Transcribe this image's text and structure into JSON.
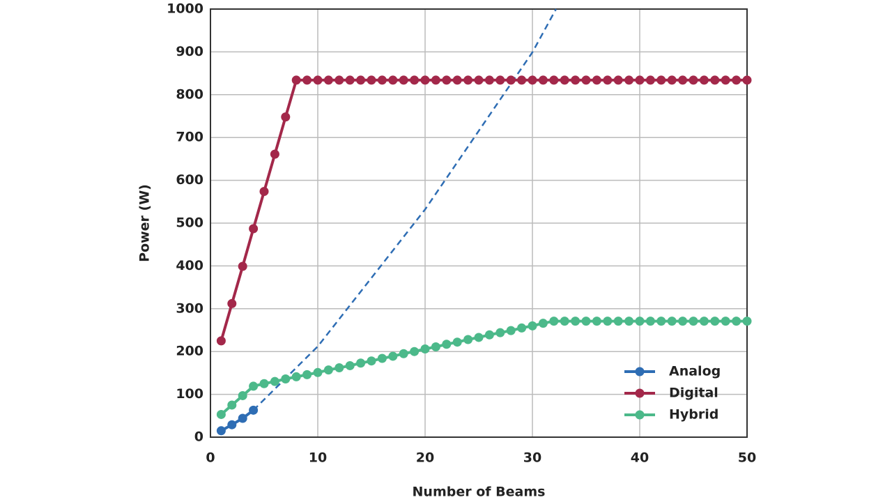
{
  "chart_data": {
    "type": "line",
    "xlabel": "Number of Beams",
    "ylabel": "Power (W)",
    "x": [
      1,
      2,
      3,
      4,
      5,
      6,
      7,
      8,
      9,
      10,
      11,
      12,
      13,
      14,
      15,
      16,
      17,
      18,
      19,
      20,
      21,
      22,
      23,
      24,
      25,
      26,
      27,
      28,
      29,
      30,
      31,
      32,
      33,
      34,
      35,
      36,
      37,
      38,
      39,
      40,
      41,
      42,
      43,
      44,
      45,
      46,
      47,
      48,
      49,
      50
    ],
    "series": [
      {
        "name": "Analog",
        "color": "#2e6db4",
        "x": [
          1,
          2,
          3,
          4
        ],
        "values": [
          15,
          29,
          44,
          63
        ],
        "projection": {
          "x": [
            4,
            10,
            20,
            30,
            32.2
          ],
          "values": [
            63,
            212,
            532,
            899,
            1000
          ]
        }
      },
      {
        "name": "Digital",
        "color": "#a3284a",
        "values": [
          225,
          312,
          399,
          487,
          574,
          661,
          748,
          834,
          834,
          834,
          834,
          834,
          834,
          834,
          834,
          834,
          834,
          834,
          834,
          834,
          834,
          834,
          834,
          834,
          834,
          834,
          834,
          834,
          834,
          834,
          834,
          834,
          834,
          834,
          834,
          834,
          834,
          834,
          834,
          834,
          834,
          834,
          834,
          834,
          834,
          834,
          834,
          834,
          834,
          834
        ]
      },
      {
        "name": "Hybrid",
        "color": "#4cb98a",
        "values": [
          53,
          75,
          97,
          119,
          125,
          130,
          136,
          141,
          146,
          151,
          157,
          162,
          167,
          173,
          178,
          184,
          189,
          195,
          200,
          206,
          211,
          217,
          222,
          228,
          233,
          239,
          244,
          249,
          255,
          260,
          266,
          271,
          271,
          271,
          271,
          271,
          271,
          271,
          271,
          271,
          271,
          271,
          271,
          271,
          271,
          271,
          271,
          271,
          271,
          271
        ]
      }
    ],
    "xlim": [
      0,
      50
    ],
    "xticks": [
      0,
      10,
      20,
      30,
      40,
      50
    ],
    "ylim": [
      0,
      1000
    ],
    "yticks": [
      0,
      100,
      200,
      300,
      400,
      500,
      600,
      700,
      800,
      900,
      1000
    ],
    "grid": true,
    "legend": "lower right"
  }
}
